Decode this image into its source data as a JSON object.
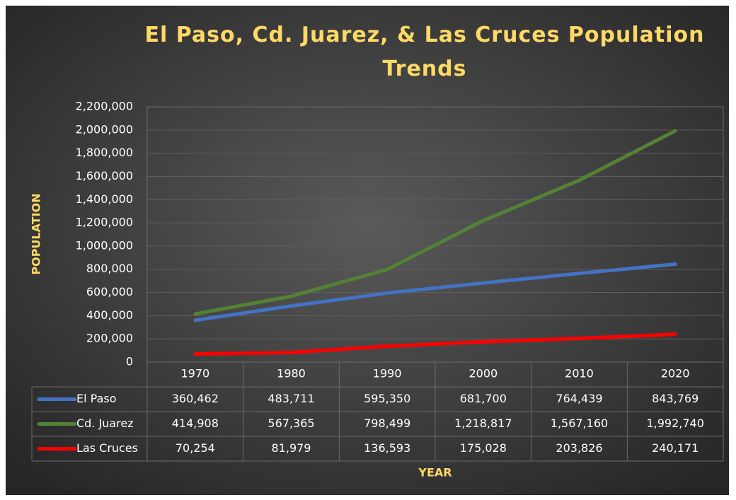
{
  "chart_data": {
    "type": "line",
    "title": "El Paso, Cd. Juarez, & Las Cruces Population Trends",
    "x_label": "YEAR",
    "y_label": "POPULATION",
    "categories": [
      "1970",
      "1980",
      "1990",
      "2000",
      "2010",
      "2020"
    ],
    "series": [
      {
        "name": "El Paso",
        "color": "#4472c4",
        "values": [
          360462,
          483711,
          595350,
          681700,
          764439,
          843769
        ],
        "value_labels": [
          "360,462",
          "483,711",
          "595,350",
          "681,700",
          "764,439",
          "843,769"
        ]
      },
      {
        "name": "Cd. Juarez",
        "color": "#548235",
        "values": [
          414908,
          567365,
          798499,
          1218817,
          1567160,
          1992740
        ],
        "value_labels": [
          "414,908",
          "567,365",
          "798,499",
          "1,218,817",
          "1,567,160",
          "1,992,740"
        ]
      },
      {
        "name": "Las Cruces",
        "color": "#ff0000",
        "values": [
          70254,
          81979,
          136593,
          175028,
          203826,
          240171
        ],
        "value_labels": [
          "70,254",
          "81,979",
          "136,593",
          "175,028",
          "203,826",
          "240,171"
        ]
      }
    ],
    "ylim": [
      0,
      2200000
    ],
    "yticks": [
      0,
      {
        "value": 200000,
        "label": "200,000"
      },
      {
        "value": 400000,
        "label": "400,000"
      },
      {
        "value": 600000,
        "label": "600,000"
      },
      {
        "value": 800000,
        "label": "800,000"
      },
      {
        "value": 1000000,
        "label": "1,000,000"
      },
      {
        "value": 1200000,
        "label": "1,200,000"
      },
      {
        "value": 1400000,
        "label": "1,400,000"
      },
      {
        "value": 1600000,
        "label": "1,600,000"
      },
      {
        "value": 1800000,
        "label": "1,800,000"
      },
      {
        "value": 2000000,
        "label": "2,000,000"
      },
      {
        "value": 2200000,
        "label": "2,200,000"
      }
    ],
    "grid": true,
    "data_table": true
  }
}
